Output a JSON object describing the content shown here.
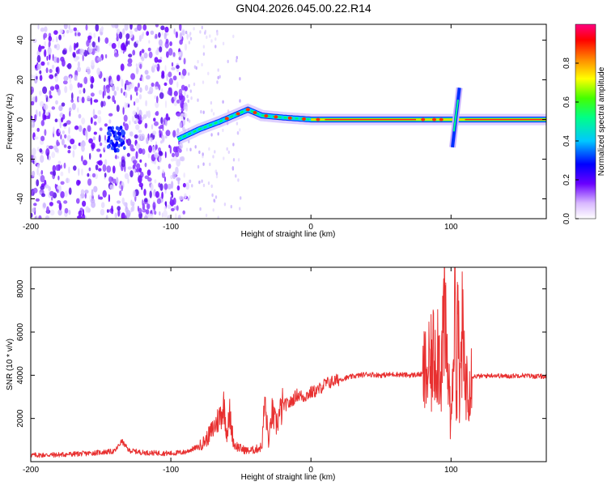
{
  "title": "GN04.2026.045.00.22.R14",
  "chart_data": [
    {
      "type": "heatmap",
      "name": "spectrogram",
      "xlabel": "Height of straight line (km)",
      "ylabel": "Frequency (Hz)",
      "xlim": [
        -200,
        168
      ],
      "ylim": [
        -50,
        48
      ],
      "xticks": [
        -200,
        -100,
        0,
        100
      ],
      "xtick_labels": [
        "-200",
        "-100",
        "0",
        "100"
      ],
      "yticks": [
        -40,
        -20,
        0,
        20,
        40
      ],
      "ytick_labels": [
        "-40",
        "-20",
        "0",
        "20",
        "40"
      ],
      "colorbar": {
        "label": "Normalized spectral amplitude",
        "range": [
          0,
          1
        ],
        "ticks": [
          0,
          0.2,
          0.4,
          0.6,
          0.8
        ],
        "tick_labels": [
          "0.0",
          "0.2",
          "0.4",
          "0.6",
          "0.8"
        ],
        "colormap": [
          "#ffffff",
          "#d8c8ff",
          "#6a00ff",
          "#0000ff",
          "#00c8ff",
          "#00ff66",
          "#ffff00",
          "#ff8800",
          "#ff0000",
          "#ff0080"
        ]
      },
      "features": {
        "noise_region_km": [
          -200,
          -88
        ],
        "ridge_points": [
          {
            "x": -95,
            "y": -10
          },
          {
            "x": -80,
            "y": -5
          },
          {
            "x": -65,
            "y": -1
          },
          {
            "x": -55,
            "y": 2
          },
          {
            "x": -45,
            "y": 5
          },
          {
            "x": -35,
            "y": 2
          },
          {
            "x": -20,
            "y": 1
          },
          {
            "x": 0,
            "y": 0
          },
          {
            "x": 40,
            "y": 0
          },
          {
            "x": 80,
            "y": 0
          },
          {
            "x": 100,
            "y": 0
          },
          {
            "x": 168,
            "y": 0
          }
        ],
        "burst_near_km": 103
      }
    },
    {
      "type": "line",
      "name": "snr",
      "xlabel": "Height of straight line (km)",
      "ylabel": "SNR (10 * v/v)",
      "xlim": [
        -200,
        168
      ],
      "ylim": [
        0,
        9000
      ],
      "xticks": [
        -200,
        -100,
        0,
        100
      ],
      "xtick_labels": [
        "-200",
        "-100",
        "0",
        "100"
      ],
      "yticks": [
        2000,
        4000,
        6000,
        8000
      ],
      "ytick_labels": [
        "2000",
        "4000",
        "6000",
        "8000"
      ],
      "color": "#e83030",
      "series": [
        {
          "name": "SNR",
          "x": [
            -200,
            -180,
            -160,
            -140,
            -135,
            -130,
            -120,
            -100,
            -90,
            -80,
            -75,
            -70,
            -65,
            -62,
            -60,
            -58,
            -55,
            -50,
            -45,
            -40,
            -35,
            -33,
            -30,
            -28,
            -25,
            -20,
            -15,
            -10,
            -5,
            0,
            5,
            10,
            20,
            30,
            40,
            50,
            60,
            70,
            80,
            85,
            90,
            93,
            95,
            97,
            99,
            100,
            101,
            102,
            103,
            104,
            105,
            106,
            107,
            108,
            109,
            110,
            112,
            115,
            120,
            130,
            140,
            150,
            160,
            168
          ],
          "y": [
            300,
            320,
            380,
            480,
            950,
            520,
            420,
            380,
            440,
            700,
            1000,
            1500,
            2100,
            2600,
            1300,
            2200,
            800,
            600,
            500,
            550,
            700,
            2800,
            800,
            2300,
            1700,
            2600,
            2700,
            3100,
            3000,
            3200,
            3300,
            3600,
            3800,
            3950,
            4050,
            4000,
            4050,
            4000,
            4050,
            4200,
            5500,
            4500,
            6800,
            4600,
            3200,
            1300,
            4500,
            6200,
            7500,
            3000,
            8900,
            2000,
            5000,
            6000,
            4500,
            3500,
            4050,
            3950,
            3950,
            4000,
            3950,
            4000,
            3950,
            3950
          ]
        }
      ]
    }
  ]
}
